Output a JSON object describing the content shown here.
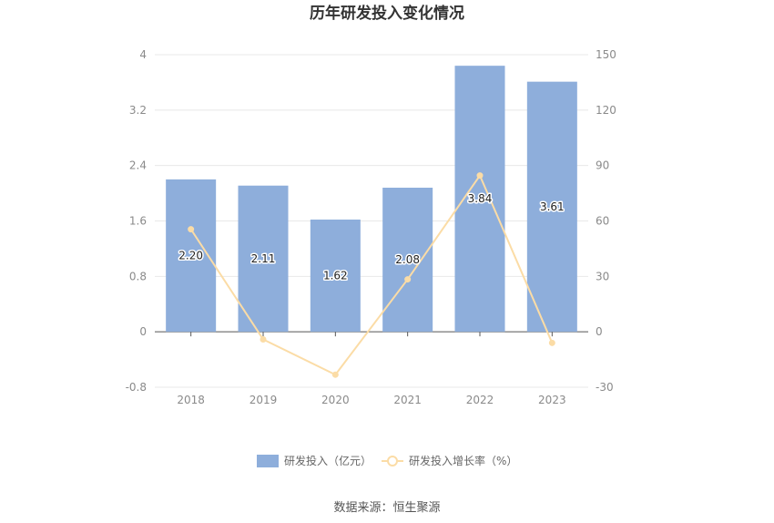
{
  "chart_data": {
    "type": "bar",
    "title": "历年研发投入变化情况",
    "categories": [
      "2018",
      "2019",
      "2020",
      "2021",
      "2022",
      "2023"
    ],
    "series": [
      {
        "name": "研发投入（亿元）",
        "type": "bar",
        "axis": "left",
        "color": "#8eaedb",
        "values": [
          2.2,
          2.11,
          1.62,
          2.08,
          3.84,
          3.61
        ],
        "labels": [
          "2.20",
          "2.11",
          "1.62",
          "2.08",
          "3.84",
          "3.61"
        ]
      },
      {
        "name": "研发投入增长率（%）",
        "type": "line",
        "axis": "right",
        "color": "#fbdca6",
        "values": [
          55.5,
          -4.1,
          -23.2,
          28.4,
          84.6,
          -6.0
        ]
      }
    ],
    "y_left": {
      "min": -0.8,
      "max": 4,
      "ticks": [
        "-0.8",
        "0",
        "0.8",
        "1.6",
        "2.4",
        "3.2",
        "4"
      ]
    },
    "y_right": {
      "min": -30,
      "max": 150,
      "ticks": [
        "-30",
        "0",
        "30",
        "60",
        "90",
        "120",
        "150"
      ]
    },
    "grid": true,
    "legend_position": "bottom-center"
  },
  "source": "数据来源：恒生聚源"
}
